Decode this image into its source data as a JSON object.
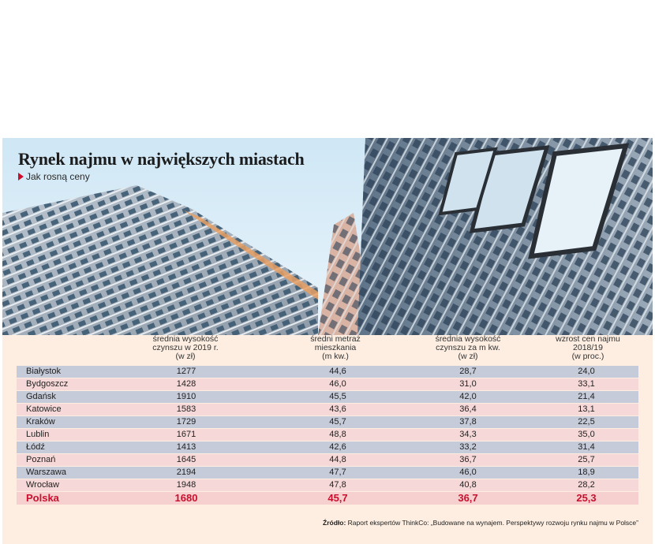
{
  "title": "Rynek najmu w największych miastach",
  "subtitle": "Jak rosną ceny",
  "colors": {
    "accent": "#c8102e",
    "row_blue": "#c6cbd9",
    "row_pink": "#f7d8d8",
    "background": "#fdeee1"
  },
  "table": {
    "headers": [
      [
        "średnia wysokość",
        "czynszu w 2019 r.",
        "(w zł)"
      ],
      [
        "średni metraż",
        "mieszkania",
        "(m kw.)"
      ],
      [
        "średnia wysokość",
        "czynszu za m kw.",
        "(w zł)"
      ],
      [
        "wzrost cen najmu",
        "2018/19",
        "(w proc.)"
      ]
    ],
    "rows": [
      {
        "city": "Białystok",
        "rent": "1277",
        "area": "44,6",
        "rent_m2": "28,7",
        "growth": "24,0"
      },
      {
        "city": "Bydgoszcz",
        "rent": "1428",
        "area": "46,0",
        "rent_m2": "31,0",
        "growth": "33,1"
      },
      {
        "city": "Gdańsk",
        "rent": "1910",
        "area": "45,5",
        "rent_m2": "42,0",
        "growth": "21,4"
      },
      {
        "city": "Katowice",
        "rent": "1583",
        "area": "43,6",
        "rent_m2": "36,4",
        "growth": "13,1"
      },
      {
        "city": "Kraków",
        "rent": "1729",
        "area": "45,7",
        "rent_m2": "37,8",
        "growth": "22,5"
      },
      {
        "city": "Lublin",
        "rent": "1671",
        "area": "48,8",
        "rent_m2": "34,3",
        "growth": "35,0"
      },
      {
        "city": "Łódź",
        "rent": "1413",
        "area": "42,6",
        "rent_m2": "33,2",
        "growth": "31,4"
      },
      {
        "city": "Poznań",
        "rent": "1645",
        "area": "44,8",
        "rent_m2": "36,7",
        "growth": "25,7"
      },
      {
        "city": "Warszawa",
        "rent": "2194",
        "area": "47,7",
        "rent_m2": "46,0",
        "growth": "18,9"
      },
      {
        "city": "Wrocław",
        "rent": "1948",
        "area": "47,8",
        "rent_m2": "40,8",
        "growth": "28,2"
      }
    ],
    "total": {
      "city": "Polska",
      "rent": "1680",
      "area": "45,7",
      "rent_m2": "36,7",
      "growth": "25,3"
    }
  },
  "source": {
    "label": "Źródło:",
    "text": "Raport ekspertów ThinkCo: „Budowane na wynajem. Perspektywy rozwoju rynku najmu w Polsce”"
  }
}
